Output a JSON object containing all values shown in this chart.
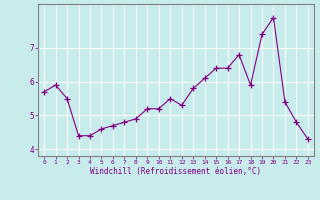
{
  "x": [
    0,
    1,
    2,
    3,
    4,
    5,
    6,
    7,
    8,
    9,
    10,
    11,
    12,
    13,
    14,
    15,
    16,
    17,
    18,
    19,
    20,
    21,
    22,
    23
  ],
  "y": [
    5.7,
    5.9,
    5.5,
    4.4,
    4.4,
    4.6,
    4.7,
    4.8,
    4.9,
    5.2,
    5.2,
    5.5,
    5.3,
    5.8,
    6.1,
    6.4,
    6.4,
    6.8,
    5.9,
    7.4,
    7.9,
    5.4,
    4.8,
    4.3
  ],
  "line_color": "#800080",
  "marker": "+",
  "marker_size": 4,
  "xlabel": "Windchill (Refroidissement éolien,°C)",
  "ylim": [
    3.8,
    8.3
  ],
  "xlim": [
    -0.5,
    23.5
  ],
  "yticks": [
    4,
    5,
    6,
    7
  ],
  "xticks": [
    0,
    1,
    2,
    3,
    4,
    5,
    6,
    7,
    8,
    9,
    10,
    11,
    12,
    13,
    14,
    15,
    16,
    17,
    18,
    19,
    20,
    21,
    22,
    23
  ],
  "bg_color": "#c8ecec",
  "grid_color": "#ffffff",
  "text_color": "#800080",
  "line_width": 0.8,
  "spine_color": "#808080"
}
